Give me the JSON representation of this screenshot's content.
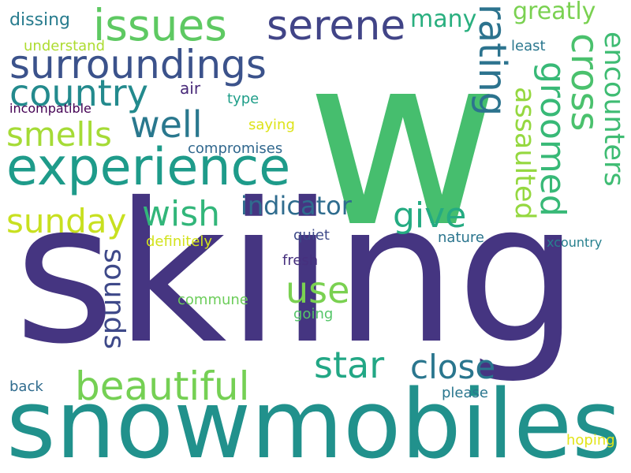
{
  "words": [
    {
      "text": "w",
      "color": "#46be6e",
      "orientation": "horizontal"
    },
    {
      "text": "skiing",
      "color": "#453581",
      "orientation": "horizontal"
    },
    {
      "text": "snowmobiles",
      "color": "#21918c",
      "orientation": "horizontal"
    },
    {
      "text": "experience",
      "color": "#1e9b8a",
      "orientation": "horizontal"
    },
    {
      "text": "surroundings",
      "color": "#3b528b",
      "orientation": "horizontal"
    },
    {
      "text": "issues",
      "color": "#5ec962",
      "orientation": "horizontal"
    },
    {
      "text": "serene",
      "color": "#414487",
      "orientation": "horizontal"
    },
    {
      "text": "country",
      "color": "#238a8d",
      "orientation": "horizontal"
    },
    {
      "text": "well",
      "color": "#2a788e",
      "orientation": "horizontal"
    },
    {
      "text": "smells",
      "color": "#a5db36",
      "orientation": "horizontal"
    },
    {
      "text": "sunday",
      "color": "#c8e020",
      "orientation": "horizontal"
    },
    {
      "text": "wish",
      "color": "#32b67a",
      "orientation": "horizontal"
    },
    {
      "text": "give",
      "color": "#25ab82",
      "orientation": "horizontal"
    },
    {
      "text": "indicator",
      "color": "#2f6c8e",
      "orientation": "horizontal"
    },
    {
      "text": "use",
      "color": "#7ad151",
      "orientation": "horizontal"
    },
    {
      "text": "beautiful",
      "color": "#75d054",
      "orientation": "horizontal"
    },
    {
      "text": "star",
      "color": "#22a785",
      "orientation": "horizontal"
    },
    {
      "text": "close",
      "color": "#2a768e",
      "orientation": "horizontal"
    },
    {
      "text": "many",
      "color": "#29af7f",
      "orientation": "horizontal"
    },
    {
      "text": "greatly",
      "color": "#7ad151",
      "orientation": "horizontal"
    },
    {
      "text": "rating",
      "color": "#2c738e",
      "orientation": "vertical"
    },
    {
      "text": "cross",
      "color": "#4ac16d",
      "orientation": "vertical"
    },
    {
      "text": "groomed",
      "color": "#38b977",
      "orientation": "vertical"
    },
    {
      "text": "encounters",
      "color": "#3fbc73",
      "orientation": "vertical"
    },
    {
      "text": "assaulted",
      "color": "#95d840",
      "orientation": "vertical"
    },
    {
      "text": "sounds",
      "color": "#3e4989",
      "orientation": "vertical"
    },
    {
      "text": "dissing",
      "color": "#287c8e",
      "orientation": "horizontal"
    },
    {
      "text": "understand",
      "color": "#addc30",
      "orientation": "horizontal"
    },
    {
      "text": "least",
      "color": "#2a778e",
      "orientation": "horizontal"
    },
    {
      "text": "air",
      "color": "#482979",
      "orientation": "horizontal"
    },
    {
      "text": "type",
      "color": "#1f9e89",
      "orientation": "horizontal"
    },
    {
      "text": "incompatible",
      "color": "#440154",
      "orientation": "horizontal"
    },
    {
      "text": "saying",
      "color": "#dde318",
      "orientation": "horizontal"
    },
    {
      "text": "compromises",
      "color": "#31688e",
      "orientation": "horizontal"
    },
    {
      "text": "definitely",
      "color": "#d2e21b",
      "orientation": "horizontal"
    },
    {
      "text": "quiet",
      "color": "#3e4a89",
      "orientation": "horizontal"
    },
    {
      "text": "nature",
      "color": "#2b758e",
      "orientation": "horizontal"
    },
    {
      "text": "xcountry",
      "color": "#27808e",
      "orientation": "horizontal"
    },
    {
      "text": "fresh",
      "color": "#46307e",
      "orientation": "horizontal"
    },
    {
      "text": "commune",
      "color": "#6ccd5a",
      "orientation": "horizontal"
    },
    {
      "text": "going",
      "color": "#54c568",
      "orientation": "horizontal"
    },
    {
      "text": "back",
      "color": "#2f6b8e",
      "orientation": "horizontal"
    },
    {
      "text": "please",
      "color": "#2a768e",
      "orientation": "horizontal"
    },
    {
      "text": "hoping",
      "color": "#e2e418",
      "orientation": "horizontal"
    }
  ]
}
